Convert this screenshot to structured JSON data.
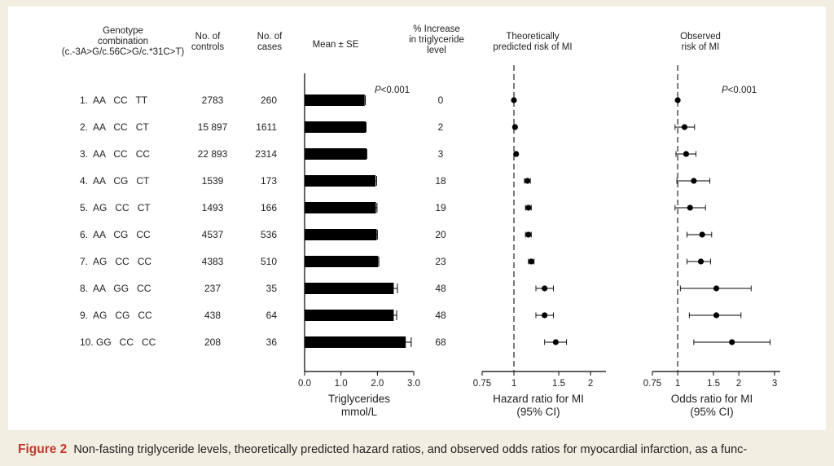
{
  "headers": {
    "genotype": [
      "Genotype",
      "combination",
      "(c.-3A>G/c.56C>G/c.*31C>T)"
    ],
    "controls": [
      "No. of",
      "controls"
    ],
    "cases": [
      "No. of",
      "cases"
    ],
    "mean": "Mean ± SE",
    "increase": [
      "% Increase",
      "in triglyceride",
      "level"
    ],
    "predicted": [
      "Theoretically",
      "predicted risk of MI"
    ],
    "observed": [
      "Observed",
      "risk of MI"
    ]
  },
  "rows": [
    {
      "label": "1.  AA   CC   TT",
      "controls": "2783",
      "cases": "260",
      "increase": "0"
    },
    {
      "label": "2.  AA   CC   CT",
      "controls": "15 897",
      "cases": "1611",
      "increase": "2"
    },
    {
      "label": "3.  AA   CC   CC",
      "controls": "22 893",
      "cases": "2314",
      "increase": "3"
    },
    {
      "label": "4.  AA   CG   CT",
      "controls": "1539",
      "cases": "173",
      "increase": "18"
    },
    {
      "label": "5.  AG   CC   CT",
      "controls": "1493",
      "cases": "166",
      "increase": "19"
    },
    {
      "label": "6.  AA   CG   CC",
      "controls": "4537",
      "cases": "536",
      "increase": "20"
    },
    {
      "label": "7.  AG   CC   CC",
      "controls": "4383",
      "cases": "510",
      "increase": "23"
    },
    {
      "label": "8.  AA   GG   CC",
      "controls": "237",
      "cases": "35",
      "increase": "48"
    },
    {
      "label": "9.  AG   CG   CC",
      "controls": "438",
      "cases": "64",
      "increase": "48"
    },
    {
      "label": "10. GG   CC   CC",
      "controls": "208",
      "cases": "36",
      "increase": "68"
    }
  ],
  "chart_data": [
    {
      "type": "bar",
      "orientation": "horizontal",
      "values": [
        1.65,
        1.68,
        1.7,
        1.95,
        1.96,
        1.98,
        2.02,
        2.45,
        2.45,
        2.78
      ],
      "errors": [
        0.02,
        0.01,
        0.01,
        0.03,
        0.03,
        0.02,
        0.02,
        0.1,
        0.08,
        0.15
      ],
      "xlim": [
        0,
        3.0
      ],
      "ticks": [
        "0.0",
        "1.0",
        "2.0",
        "3.0"
      ],
      "tick_values": [
        0,
        1,
        2,
        3
      ],
      "xlabel": "Triglycerides",
      "xunit": "mmol/L",
      "annotation": "P<0.001",
      "color": "#000000"
    },
    {
      "type": "scatter",
      "scale": "log",
      "values": [
        1.0,
        1.01,
        1.02,
        1.13,
        1.14,
        1.14,
        1.17,
        1.32,
        1.32,
        1.46
      ],
      "ci_low": [
        1.0,
        1.0,
        1.01,
        1.1,
        1.11,
        1.11,
        1.14,
        1.22,
        1.22,
        1.32
      ],
      "ci_high": [
        1.0,
        1.02,
        1.03,
        1.16,
        1.17,
        1.17,
        1.2,
        1.43,
        1.43,
        1.61
      ],
      "xlim": [
        0.75,
        2.3
      ],
      "ticks": [
        "0.75",
        "1",
        "1.5",
        "2"
      ],
      "tick_values": [
        0.75,
        1,
        1.5,
        2
      ],
      "reference": 1,
      "xlabel": "Hazard ratio for MI",
      "xunit": "(95% CI)"
    },
    {
      "type": "scatter",
      "scale": "log",
      "values": [
        1.0,
        1.08,
        1.1,
        1.2,
        1.15,
        1.32,
        1.3,
        1.55,
        1.55,
        1.85
      ],
      "ci_low": [
        1.0,
        0.97,
        0.98,
        0.99,
        0.97,
        1.11,
        1.11,
        1.03,
        1.14,
        1.2
      ],
      "ci_high": [
        1.0,
        1.21,
        1.23,
        1.44,
        1.37,
        1.47,
        1.45,
        2.3,
        2.05,
        2.85
      ],
      "xlim": [
        0.75,
        3.2
      ],
      "ticks": [
        "0.75",
        "1",
        "1.5",
        "2",
        "3"
      ],
      "tick_values": [
        0.75,
        1,
        1.5,
        2,
        3
      ],
      "reference": 1,
      "annotation": "P<0.001",
      "xlabel": "Odds ratio for MI",
      "xunit": "(95% CI)"
    }
  ],
  "caption": {
    "label": "Figure 2",
    "text": "Non-fasting triglyceride levels, theoretically predicted hazard ratios, and observed odds ratios for myocardial infarction, as a func-"
  }
}
